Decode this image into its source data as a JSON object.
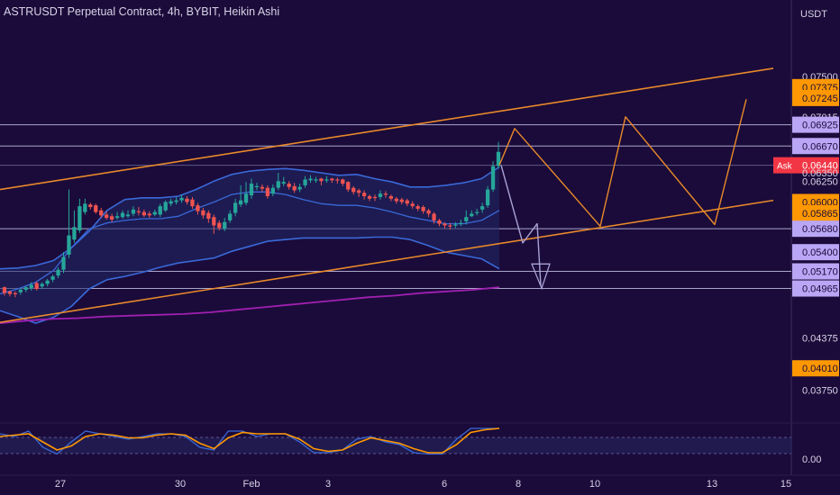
{
  "header": {
    "title": "ASTRUSDT Perpetual Contract, 4h, BYBIT, Heikin Ashi",
    "unit": "USDT"
  },
  "colors": {
    "background": "#1b0b3a",
    "up": "#26a69a",
    "down": "#ef5350",
    "band": "#3a69d8",
    "trend": "#e8892a",
    "ma": "#a020b0",
    "level": "#c5c3e6",
    "highlight_orange": "#ff9800",
    "highlight_purple": "#b9a6f5",
    "ask": "#f23645"
  },
  "chart_data": {
    "type": "candlestick",
    "title": "ASTRUSDT Perpetual Contract, 4h, BYBIT, Heikin Ashi",
    "ylabel": "USDT",
    "y_scale": "linear",
    "ylim": [
      0.0342,
      0.0775
    ],
    "x_ticks": [
      "27",
      "30",
      "Feb",
      "3",
      "6",
      "8",
      "10",
      "13",
      "15"
    ],
    "y_tick_labels": [
      {
        "value": 0.075,
        "label": "0.07500",
        "style": "plain"
      },
      {
        "value": 0.07375,
        "label": "0.07375",
        "style": "orange"
      },
      {
        "value": 0.07245,
        "label": "0.07245",
        "style": "orange"
      },
      {
        "value": 0.07015,
        "label": "0.07015",
        "style": "plain"
      },
      {
        "value": 0.06925,
        "label": "0.06925",
        "style": "purple"
      },
      {
        "value": 0.0667,
        "label": "0.06670",
        "style": "purple"
      },
      {
        "value": 0.0644,
        "label": "0.06440",
        "style": "price"
      },
      {
        "value": 0.0635,
        "label": "0.06350",
        "style": "plain"
      },
      {
        "value": 0.0625,
        "label": "0.06250",
        "style": "plain"
      },
      {
        "value": 0.06,
        "label": "0.06000",
        "style": "orange"
      },
      {
        "value": 0.05865,
        "label": "0.05865",
        "style": "orange"
      },
      {
        "value": 0.0568,
        "label": "0.05680",
        "style": "purple"
      },
      {
        "value": 0.054,
        "label": "0.05400",
        "style": "purple"
      },
      {
        "value": 0.0517,
        "label": "0.05170",
        "style": "purple"
      },
      {
        "value": 0.04965,
        "label": "0.04965",
        "style": "purple"
      },
      {
        "value": 0.04375,
        "label": "0.04375",
        "style": "plain"
      },
      {
        "value": 0.0401,
        "label": "0.04010",
        "style": "orange"
      },
      {
        "value": 0.0375,
        "label": "0.03750",
        "style": "plain"
      }
    ],
    "ask_label": "Ask",
    "last_price": 0.0644,
    "horizontal_levels": [
      0.06925,
      0.0667,
      0.0644,
      0.0568,
      0.0517,
      0.04965
    ],
    "candles": {
      "open": [
        0.0498,
        0.0493,
        0.0491,
        0.0492,
        0.0495,
        0.0497,
        0.0503,
        0.0499,
        0.0502,
        0.0507,
        0.0512,
        0.0519,
        0.0537,
        0.0555,
        0.0566,
        0.0588,
        0.0597,
        0.0596,
        0.059,
        0.0585,
        0.0583,
        0.0581,
        0.0582,
        0.0583,
        0.0586,
        0.0589,
        0.0588,
        0.0586,
        0.0585,
        0.0585,
        0.059,
        0.0598,
        0.06,
        0.0602,
        0.0604,
        0.0603,
        0.0596,
        0.059,
        0.0587,
        0.0582,
        0.0575,
        0.0568,
        0.0578,
        0.0587,
        0.0597,
        0.0599,
        0.0608,
        0.0618,
        0.0618,
        0.0617,
        0.061,
        0.0617,
        0.0622,
        0.0622,
        0.0619,
        0.0615,
        0.062,
        0.0626,
        0.0627,
        0.0628,
        0.0626,
        0.0628,
        0.0627,
        0.0627,
        0.0624,
        0.0617,
        0.0614,
        0.0611,
        0.0607,
        0.0606,
        0.0606,
        0.061,
        0.0607,
        0.0604,
        0.0603,
        0.0602,
        0.0598,
        0.0595,
        0.0594,
        0.059,
        0.0586,
        0.0578,
        0.0574,
        0.0572,
        0.0572,
        0.0574,
        0.0577,
        0.0583,
        0.0587,
        0.0591,
        0.0596,
        0.0615,
        0.0643
      ],
      "close": [
        0.0491,
        0.049,
        0.049,
        0.0495,
        0.0498,
        0.0501,
        0.0496,
        0.0502,
        0.0506,
        0.0511,
        0.0519,
        0.0534,
        0.056,
        0.057,
        0.0595,
        0.0598,
        0.0594,
        0.0588,
        0.0584,
        0.0581,
        0.0579,
        0.0583,
        0.0587,
        0.0585,
        0.0591,
        0.0588,
        0.0584,
        0.0584,
        0.0588,
        0.0595,
        0.06,
        0.0601,
        0.0602,
        0.0605,
        0.06,
        0.0595,
        0.0589,
        0.0584,
        0.058,
        0.0572,
        0.0569,
        0.0576,
        0.0586,
        0.0599,
        0.0602,
        0.061,
        0.0622,
        0.0619,
        0.0616,
        0.0607,
        0.0617,
        0.0625,
        0.0624,
        0.0618,
        0.0614,
        0.0618,
        0.0627,
        0.0628,
        0.0627,
        0.0625,
        0.0627,
        0.0626,
        0.0626,
        0.0622,
        0.0615,
        0.0612,
        0.0611,
        0.0607,
        0.0604,
        0.0605,
        0.061,
        0.0609,
        0.0604,
        0.0601,
        0.06,
        0.0598,
        0.0595,
        0.0592,
        0.0589,
        0.0586,
        0.0578,
        0.0574,
        0.0572,
        0.0571,
        0.0573,
        0.0575,
        0.0582,
        0.0586,
        0.0588,
        0.0595,
        0.0615,
        0.0643,
        0.066
      ],
      "high": [
        0.0499,
        0.0494,
        0.0493,
        0.0497,
        0.05,
        0.0504,
        0.0505,
        0.0504,
        0.0508,
        0.0513,
        0.0522,
        0.054,
        0.0615,
        0.059,
        0.0604,
        0.0604,
        0.0599,
        0.0598,
        0.0593,
        0.0589,
        0.0586,
        0.0588,
        0.059,
        0.059,
        0.0595,
        0.0594,
        0.0591,
        0.0589,
        0.0591,
        0.0598,
        0.0602,
        0.0604,
        0.0606,
        0.0609,
        0.0607,
        0.0606,
        0.0599,
        0.0593,
        0.059,
        0.0585,
        0.0578,
        0.0581,
        0.059,
        0.0604,
        0.062,
        0.0624,
        0.0628,
        0.0623,
        0.0621,
        0.062,
        0.0621,
        0.0635,
        0.063,
        0.0625,
        0.0623,
        0.0622,
        0.0631,
        0.0632,
        0.063,
        0.0629,
        0.0631,
        0.0629,
        0.0629,
        0.0628,
        0.0625,
        0.0619,
        0.0616,
        0.0614,
        0.0609,
        0.0609,
        0.0614,
        0.0613,
        0.0609,
        0.0606,
        0.0605,
        0.0604,
        0.0601,
        0.0597,
        0.0596,
        0.0592,
        0.0588,
        0.058,
        0.0576,
        0.0575,
        0.0576,
        0.0579,
        0.059,
        0.059,
        0.0592,
        0.0599,
        0.0619,
        0.0649,
        0.0672
      ],
      "low": [
        0.0488,
        0.0487,
        0.0486,
        0.0489,
        0.0492,
        0.0494,
        0.0494,
        0.0496,
        0.0499,
        0.0504,
        0.0509,
        0.0515,
        0.0533,
        0.0551,
        0.0563,
        0.0585,
        0.0591,
        0.0586,
        0.0581,
        0.0579,
        0.0576,
        0.0579,
        0.058,
        0.0581,
        0.0583,
        0.0584,
        0.0582,
        0.0581,
        0.0583,
        0.0582,
        0.0588,
        0.0595,
        0.0597,
        0.0599,
        0.0597,
        0.0592,
        0.0585,
        0.058,
        0.0575,
        0.0562,
        0.0566,
        0.0565,
        0.0575,
        0.0583,
        0.0594,
        0.0596,
        0.0604,
        0.0614,
        0.0612,
        0.0604,
        0.0607,
        0.0614,
        0.0619,
        0.0615,
        0.0611,
        0.0612,
        0.0617,
        0.0623,
        0.0623,
        0.062,
        0.0623,
        0.0623,
        0.0622,
        0.0619,
        0.0612,
        0.0609,
        0.0606,
        0.0603,
        0.0601,
        0.0601,
        0.0603,
        0.0605,
        0.0601,
        0.0598,
        0.0597,
        0.0595,
        0.0592,
        0.0589,
        0.0586,
        0.0582,
        0.0574,
        0.0571,
        0.0568,
        0.0567,
        0.0569,
        0.0571,
        0.0573,
        0.0582,
        0.0584,
        0.0587,
        0.0593,
        0.0612,
        0.064
      ]
    },
    "bollinger": {
      "upper": [
        0.052,
        0.0521,
        0.0524,
        0.053,
        0.0545,
        0.0565,
        0.059,
        0.0603,
        0.0605,
        0.0605,
        0.0607,
        0.0615,
        0.0625,
        0.0633,
        0.0637,
        0.0639,
        0.064,
        0.0638,
        0.0635,
        0.0632,
        0.0633,
        0.0628,
        0.0624,
        0.0618,
        0.0618,
        0.062,
        0.0623,
        0.0628,
        0.0642
      ],
      "mid": [
        0.049,
        0.0496,
        0.0504,
        0.0518,
        0.0545,
        0.0568,
        0.0575,
        0.0578,
        0.058,
        0.058,
        0.0583,
        0.0592,
        0.06,
        0.0609,
        0.0612,
        0.0612,
        0.0609,
        0.0603,
        0.0598,
        0.0596,
        0.0596,
        0.0593,
        0.0588,
        0.0582,
        0.0578,
        0.0574,
        0.0574,
        0.0578,
        0.059
      ],
      "lower": [
        0.047,
        0.0463,
        0.0455,
        0.0462,
        0.0475,
        0.0496,
        0.0507,
        0.0511,
        0.0516,
        0.0522,
        0.0527,
        0.053,
        0.0533,
        0.0541,
        0.0547,
        0.0553,
        0.0555,
        0.0557,
        0.0557,
        0.0557,
        0.0557,
        0.0558,
        0.0558,
        0.0555,
        0.0548,
        0.054,
        0.0536,
        0.0532,
        0.052
      ]
    },
    "moving_average": [
      0.0455,
      0.0458,
      0.046,
      0.0461,
      0.0463,
      0.0464,
      0.0465,
      0.0466,
      0.0468,
      0.0471,
      0.0474,
      0.0477,
      0.048,
      0.0483,
      0.0486,
      0.0488,
      0.0491,
      0.0493,
      0.0495,
      0.0498
    ],
    "trend_channel": {
      "upper": [
        [
          0.0,
          0.0615
        ],
        [
          1.0,
          0.076
        ]
      ],
      "lower": [
        [
          0.0,
          0.0456
        ],
        [
          1.0,
          0.0602
        ]
      ]
    },
    "projection_zigzag": [
      0.0644,
      0.0688,
      0.0571,
      0.0702,
      0.0573,
      0.0723,
      0.0604,
      0.0765
    ],
    "projection_down_arrow": [
      0.0644,
      0.0551,
      0.0574,
      0.05
    ],
    "oscillator": {
      "label_zero": "0.00",
      "series": [
        {
          "color": "#3a69d8",
          "values": [
            0.8,
            0.7,
            0.9,
            0.3,
            0.05,
            0.5,
            0.9,
            0.8,
            0.7,
            0.6,
            0.7,
            0.8,
            0.8,
            0.7,
            0.3,
            0.2,
            0.9,
            0.9,
            0.7,
            0.8,
            0.8,
            0.5,
            0.1,
            0.1,
            0.2,
            0.6,
            0.7,
            0.5,
            0.4,
            0.1,
            0.05,
            0.05,
            0.6,
            1.0,
            1.0,
            1.0
          ]
        },
        {
          "color": "#ff9800",
          "values": [
            0.7,
            0.75,
            0.8,
            0.5,
            0.2,
            0.35,
            0.7,
            0.8,
            0.75,
            0.65,
            0.65,
            0.75,
            0.8,
            0.75,
            0.45,
            0.25,
            0.65,
            0.85,
            0.8,
            0.8,
            0.8,
            0.6,
            0.25,
            0.15,
            0.2,
            0.45,
            0.65,
            0.55,
            0.45,
            0.25,
            0.1,
            0.1,
            0.4,
            0.85,
            0.95,
            1.0
          ]
        }
      ]
    }
  }
}
